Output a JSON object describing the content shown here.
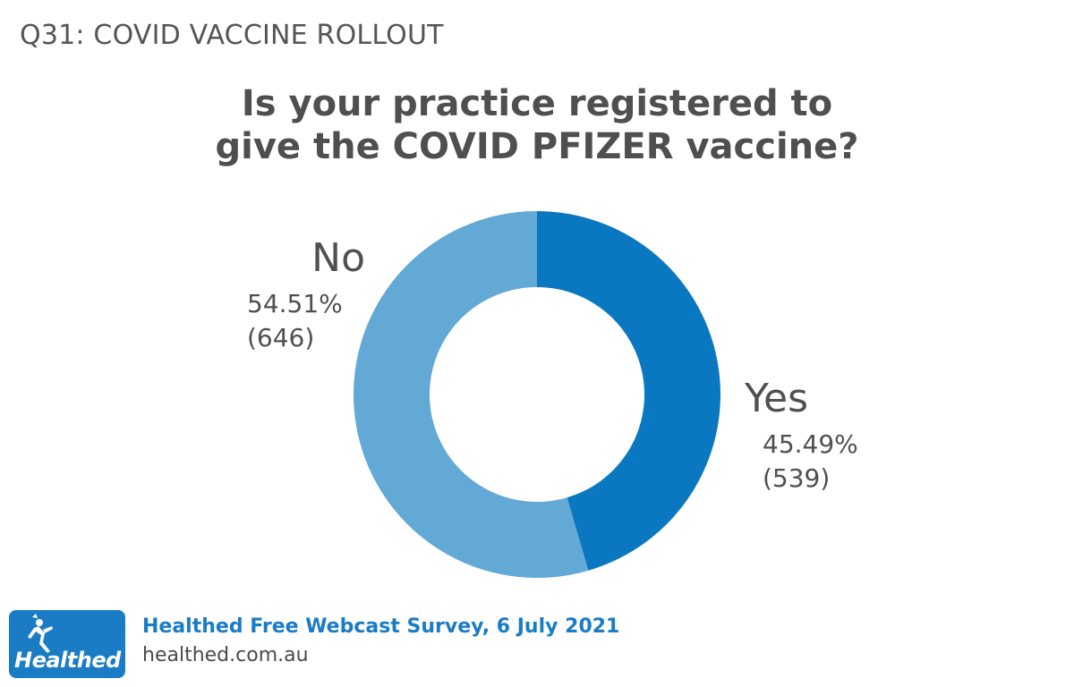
{
  "header": {
    "section_label": "Q31: COVID VACCINE ROLLOUT",
    "title_line1": "Is your practice registered to",
    "title_line2": "give the COVID PFIZER vaccine?"
  },
  "chart_data": {
    "type": "pie",
    "donut": true,
    "title": "Is your practice registered to give the COVID PFIZER vaccine?",
    "slices": [
      {
        "label": "Yes",
        "percent_label": "45.49%",
        "count_label": "(539)",
        "percent": 45.49,
        "count": 539,
        "color": "#0a78c0"
      },
      {
        "label": "No",
        "percent_label": "54.51%",
        "count_label": "(646)",
        "percent": 54.51,
        "count": 646,
        "color": "#62a9d6"
      }
    ]
  },
  "footer": {
    "logo_text": "Healthed",
    "survey_label": "Healthed Free Webcast Survey, 6 July 2021",
    "website": "healthed.com.au",
    "brand_color": "#1a7cc5"
  }
}
